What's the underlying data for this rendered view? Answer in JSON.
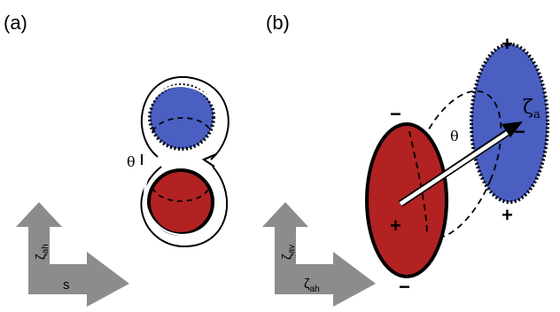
{
  "panels": {
    "a": {
      "label": "(a)",
      "theta": "θ",
      "arrow_vertical": {
        "symbol": "ζ",
        "subscript": "ah"
      },
      "arrow_horizontal": {
        "label": "s"
      }
    },
    "b": {
      "label": "(b)",
      "theta": "θ",
      "vector": {
        "symbol": "ζ",
        "subscript": "a"
      },
      "arrow_vertical": {
        "symbol": "ζ",
        "subscript": "av"
      },
      "arrow_horizontal": {
        "symbol": "ζ",
        "subscript": "ah"
      },
      "signs": {
        "plus": "+",
        "minus": "−"
      }
    }
  },
  "colors": {
    "red": "#b22222",
    "blue": "#4a5fc1",
    "arrow_gray": "#8c8c8c",
    "outline": "#000000"
  }
}
